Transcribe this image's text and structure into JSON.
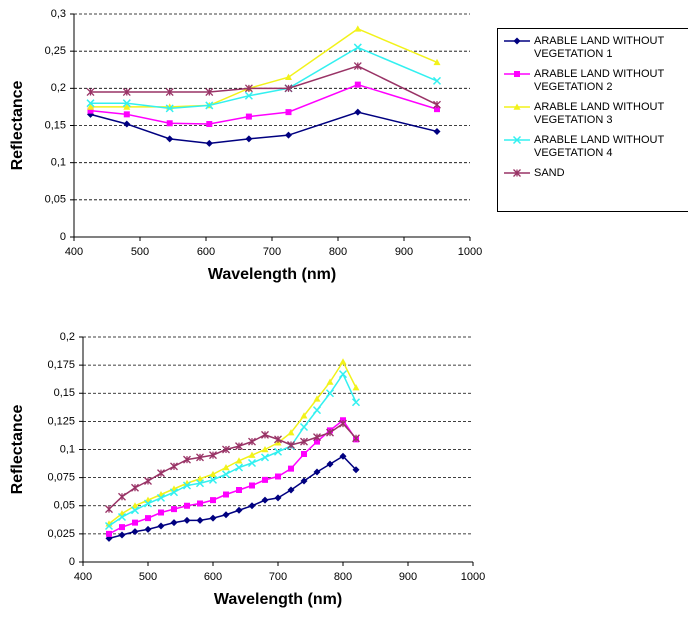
{
  "chart_data": [
    {
      "type": "line",
      "x": [
        425,
        480,
        545,
        605,
        665,
        725,
        830,
        950
      ],
      "series": [
        {
          "name": "ARABLE LAND WITHOUT VEGETATION 1",
          "color": "#000080",
          "marker": "diamond",
          "values": [
            0.165,
            0.152,
            0.132,
            0.126,
            0.132,
            0.137,
            0.168,
            0.142
          ]
        },
        {
          "name": "ARABLE LAND WITHOUT VEGETATION 2",
          "color": "#ff00ff",
          "marker": "square",
          "values": [
            0.17,
            0.165,
            0.153,
            0.152,
            0.162,
            0.168,
            0.205,
            0.172
          ]
        },
        {
          "name": "ARABLE LAND WITHOUT VEGETATION 3",
          "color": "#f2f21a",
          "marker": "triangle",
          "values": [
            0.175,
            0.175,
            0.175,
            0.177,
            0.2,
            0.215,
            0.28,
            0.235
          ]
        },
        {
          "name": "ARABLE LAND WITHOUT VEGETATION 4",
          "color": "#33f0f0",
          "marker": "cross",
          "values": [
            0.18,
            0.18,
            0.173,
            0.177,
            0.19,
            0.2,
            0.255,
            0.21
          ]
        },
        {
          "name": "SAND",
          "color": "#993366",
          "marker": "star",
          "values": [
            0.195,
            0.195,
            0.195,
            0.195,
            0.2,
            0.2,
            0.23,
            0.178
          ]
        }
      ],
      "x_label": "Wavelength (nm)",
      "y_label": "Reflectance",
      "xlim": [
        400,
        1000
      ],
      "xticks": [
        400,
        500,
        600,
        700,
        800,
        900,
        1000
      ],
      "ylim": [
        0,
        0.3
      ],
      "yticks": [
        0,
        {
          "value": 0.05,
          "label": "0,05"
        },
        {
          "value": 0.1,
          "label": "0,1"
        },
        {
          "value": 0.15,
          "label": "0,15"
        },
        {
          "value": 0.2,
          "label": "0,2"
        },
        {
          "value": 0.25,
          "label": "0,25"
        },
        {
          "value": 0.3,
          "label": "0,3"
        }
      ],
      "grid": true,
      "legend": "right"
    },
    {
      "type": "line",
      "x": [
        440,
        460,
        480,
        500,
        520,
        540,
        560,
        580,
        600,
        620,
        640,
        660,
        680,
        700,
        720,
        740,
        760,
        780,
        800,
        820
      ],
      "series": [
        {
          "color": "#000080",
          "marker": "diamond",
          "values": [
            0.021,
            0.024,
            0.027,
            0.029,
            0.032,
            0.035,
            0.037,
            0.037,
            0.039,
            0.042,
            0.046,
            0.05,
            0.055,
            0.057,
            0.064,
            0.072,
            0.08,
            0.087,
            0.094,
            0.082
          ]
        },
        {
          "color": "#ff00ff",
          "marker": "square",
          "values": [
            0.025,
            0.031,
            0.035,
            0.039,
            0.044,
            0.047,
            0.05,
            0.052,
            0.055,
            0.06,
            0.064,
            0.068,
            0.073,
            0.076,
            0.083,
            0.096,
            0.107,
            0.117,
            0.126,
            0.109
          ]
        },
        {
          "color": "#f2f21a",
          "marker": "triangle",
          "values": [
            0.034,
            0.043,
            0.05,
            0.055,
            0.06,
            0.065,
            0.07,
            0.074,
            0.078,
            0.084,
            0.09,
            0.095,
            0.1,
            0.106,
            0.115,
            0.13,
            0.145,
            0.16,
            0.178,
            0.155
          ]
        },
        {
          "color": "#33f0f0",
          "marker": "cross",
          "values": [
            0.032,
            0.04,
            0.046,
            0.052,
            0.057,
            0.062,
            0.068,
            0.07,
            0.073,
            0.078,
            0.084,
            0.088,
            0.093,
            0.098,
            0.103,
            0.12,
            0.135,
            0.15,
            0.167,
            0.142
          ]
        },
        {
          "color": "#993366",
          "marker": "star",
          "values": [
            0.047,
            0.058,
            0.066,
            0.072,
            0.079,
            0.085,
            0.091,
            0.093,
            0.095,
            0.1,
            0.103,
            0.107,
            0.113,
            0.109,
            0.104,
            0.107,
            0.111,
            0.115,
            0.123,
            0.11
          ]
        }
      ],
      "x_label": "Wavelength (nm)",
      "y_label": "Reflectance",
      "xlim": [
        400,
        1000
      ],
      "xticks": [
        400,
        500,
        600,
        700,
        800,
        900,
        1000
      ],
      "ylim": [
        0,
        0.2
      ],
      "yticks": [
        0,
        {
          "value": 0.025,
          "label": "0,025"
        },
        {
          "value": 0.05,
          "label": "0,05"
        },
        {
          "value": 0.075,
          "label": "0,075"
        },
        {
          "value": 0.1,
          "label": "0,1"
        },
        {
          "value": 0.125,
          "label": "0,125"
        },
        {
          "value": 0.15,
          "label": "0,15"
        },
        {
          "value": 0.175,
          "label": "0,175"
        },
        {
          "value": 0.2,
          "label": "0,2"
        }
      ],
      "grid": true
    }
  ]
}
